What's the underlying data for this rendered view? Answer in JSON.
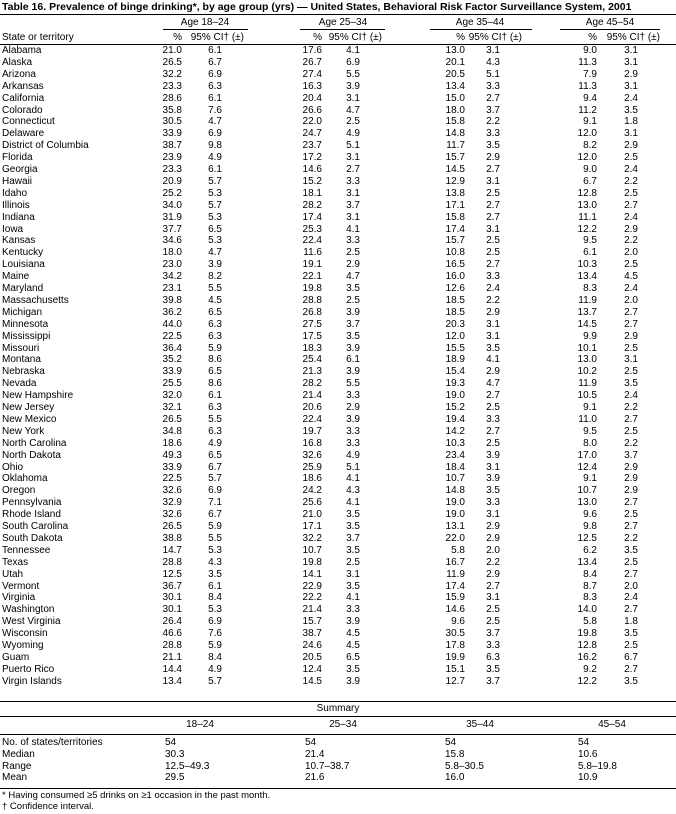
{
  "title": "Table 16. Prevalence of binge drinking*, by age group (yrs) — United States, Behavioral Risk Factor Surveillance System, 2001",
  "header": {
    "state": "State or territory",
    "groups": [
      "Age 18–24",
      "Age 25–34",
      "Age 35–44",
      "Age 45–54"
    ],
    "pct": "%",
    "ci": "95% CI† (±)"
  },
  "rows": [
    [
      "Alabama",
      "21.0",
      "6.1",
      "17.6",
      "4.1",
      "13.0",
      "3.1",
      "9.0",
      "3.1"
    ],
    [
      "Alaska",
      "26.5",
      "6.7",
      "26.7",
      "6.9",
      "20.1",
      "4.3",
      "11.3",
      "3.1"
    ],
    [
      "Arizona",
      "32.2",
      "6.9",
      "27.4",
      "5.5",
      "20.5",
      "5.1",
      "7.9",
      "2.9"
    ],
    [
      "Arkansas",
      "23.3",
      "6.3",
      "16.3",
      "3.9",
      "13.4",
      "3.3",
      "11.3",
      "3.1"
    ],
    [
      "California",
      "28.6",
      "6.1",
      "20.4",
      "3.1",
      "15.0",
      "2.7",
      "9.4",
      "2.4"
    ],
    [
      "Colorado",
      "35.8",
      "7.6",
      "26.6",
      "4.7",
      "18.0",
      "3.7",
      "11.2",
      "3.5"
    ],
    [
      "Connecticut",
      "30.5",
      "4.7",
      "22.0",
      "2.5",
      "15.8",
      "2.2",
      "9.1",
      "1.8"
    ],
    [
      "Delaware",
      "33.9",
      "6.9",
      "24.7",
      "4.9",
      "14.8",
      "3.3",
      "12.0",
      "3.1"
    ],
    [
      "District of Columbia",
      "38.7",
      "9.8",
      "23.7",
      "5.1",
      "11.7",
      "3.5",
      "8.2",
      "2.9"
    ],
    [
      "Florida",
      "23.9",
      "4.9",
      "17.2",
      "3.1",
      "15.7",
      "2.9",
      "12.0",
      "2.5"
    ],
    [
      "Georgia",
      "23.3",
      "6.1",
      "14.6",
      "2.7",
      "14.5",
      "2.7",
      "9.0",
      "2.4"
    ],
    [
      "Hawaii",
      "20.9",
      "5.7",
      "15.2",
      "3.3",
      "12.9",
      "3.1",
      "6.7",
      "2.2"
    ],
    [
      "Idaho",
      "25.2",
      "5.3",
      "18.1",
      "3.1",
      "13.8",
      "2.5",
      "12.8",
      "2.5"
    ],
    [
      "Illinois",
      "34.0",
      "5.7",
      "28.2",
      "3.7",
      "17.1",
      "2.7",
      "13.0",
      "2.7"
    ],
    [
      "Indiana",
      "31.9",
      "5.3",
      "17.4",
      "3.1",
      "15.8",
      "2.7",
      "11.1",
      "2.4"
    ],
    [
      "Iowa",
      "37.7",
      "6.5",
      "25.3",
      "4.1",
      "17.4",
      "3.1",
      "12.2",
      "2.9"
    ],
    [
      "Kansas",
      "34.6",
      "5.3",
      "22.4",
      "3.3",
      "15.7",
      "2.5",
      "9.5",
      "2.2"
    ],
    [
      "Kentucky",
      "18.0",
      "4.7",
      "11.6",
      "2.5",
      "10.8",
      "2.5",
      "6.1",
      "2.0"
    ],
    [
      "Louisiana",
      "23.0",
      "3.9",
      "19.1",
      "2.9",
      "16.5",
      "2.7",
      "10.3",
      "2.5"
    ],
    [
      "Maine",
      "34.2",
      "8.2",
      "22.1",
      "4.7",
      "16.0",
      "3.3",
      "13.4",
      "4.5"
    ],
    [
      "Maryland",
      "23.1",
      "5.5",
      "19.8",
      "3.5",
      "12.6",
      "2.4",
      "8.3",
      "2.4"
    ],
    [
      "Massachusetts",
      "39.8",
      "4.5",
      "28.8",
      "2.5",
      "18.5",
      "2.2",
      "11.9",
      "2.0"
    ],
    [
      "Michigan",
      "36.2",
      "6.5",
      "26.8",
      "3.9",
      "18.5",
      "2.9",
      "13.7",
      "2.7"
    ],
    [
      "Minnesota",
      "44.0",
      "6.3",
      "27.5",
      "3.7",
      "20.3",
      "3.1",
      "14.5",
      "2.7"
    ],
    [
      "Mississippi",
      "22.5",
      "6.3",
      "17.5",
      "3.5",
      "12.0",
      "3.1",
      "9.9",
      "2.9"
    ],
    [
      "Missouri",
      "36.4",
      "5.9",
      "18.3",
      "3.9",
      "15.5",
      "3.5",
      "10.1",
      "2.5"
    ],
    [
      "Montana",
      "35.2",
      "8.6",
      "25.4",
      "6.1",
      "18.9",
      "4.1",
      "13.0",
      "3.1"
    ],
    [
      "Nebraska",
      "33.9",
      "6.5",
      "21.3",
      "3.9",
      "15.4",
      "2.9",
      "10.2",
      "2.5"
    ],
    [
      "Nevada",
      "25.5",
      "8.6",
      "28.2",
      "5.5",
      "19.3",
      "4.7",
      "11.9",
      "3.5"
    ],
    [
      "New Hampshire",
      "32.0",
      "6.1",
      "21.4",
      "3.3",
      "19.0",
      "2.7",
      "10.5",
      "2.4"
    ],
    [
      "New Jersey",
      "32.1",
      "6.3",
      "20.6",
      "2.9",
      "15.2",
      "2.5",
      "9.1",
      "2.2"
    ],
    [
      "New Mexico",
      "26.5",
      "5.5",
      "22.4",
      "3.9",
      "19.4",
      "3.3",
      "11.0",
      "2.7"
    ],
    [
      "New York",
      "34.8",
      "6.3",
      "19.7",
      "3.3",
      "14.2",
      "2.7",
      "9.5",
      "2.5"
    ],
    [
      "North Carolina",
      "18.6",
      "4.9",
      "16.8",
      "3.3",
      "10.3",
      "2.5",
      "8.0",
      "2.2"
    ],
    [
      "North Dakota",
      "49.3",
      "6.5",
      "32.6",
      "4.9",
      "23.4",
      "3.9",
      "17.0",
      "3.7"
    ],
    [
      "Ohio",
      "33.9",
      "6.7",
      "25.9",
      "5.1",
      "18.4",
      "3.1",
      "12.4",
      "2.9"
    ],
    [
      "Oklahoma",
      "22.5",
      "5.7",
      "18.6",
      "4.1",
      "10.7",
      "3.9",
      "9.1",
      "2.9"
    ],
    [
      "Oregon",
      "32.6",
      "6.9",
      "24.2",
      "4.3",
      "14.8",
      "3.5",
      "10.7",
      "2.9"
    ],
    [
      "Pennsylvania",
      "32.9",
      "7.1",
      "25.6",
      "4.1",
      "19.0",
      "3.3",
      "13.0",
      "2.7"
    ],
    [
      "Rhode Island",
      "32.6",
      "6.7",
      "21.0",
      "3.5",
      "19.0",
      "3.1",
      "9.6",
      "2.5"
    ],
    [
      "South Carolina",
      "26.5",
      "5.9",
      "17.1",
      "3.5",
      "13.1",
      "2.9",
      "9.8",
      "2.7"
    ],
    [
      "South Dakota",
      "38.8",
      "5.5",
      "32.2",
      "3.7",
      "22.0",
      "2.9",
      "12.5",
      "2.2"
    ],
    [
      "Tennessee",
      "14.7",
      "5.3",
      "10.7",
      "3.5",
      "5.8",
      "2.0",
      "6.2",
      "3.5"
    ],
    [
      "Texas",
      "28.8",
      "4.3",
      "19.8",
      "2.5",
      "16.7",
      "2.2",
      "13.4",
      "2.5"
    ],
    [
      "Utah",
      "12.5",
      "3.5",
      "14.1",
      "3.1",
      "11.9",
      "2.9",
      "8.4",
      "2.7"
    ],
    [
      "Vermont",
      "36.7",
      "6.1",
      "22.9",
      "3.5",
      "17.4",
      "2.7",
      "8.7",
      "2.0"
    ],
    [
      "Virginia",
      "30.1",
      "8.4",
      "22.2",
      "4.1",
      "15.9",
      "3.1",
      "8.3",
      "2.4"
    ],
    [
      "Washington",
      "30.1",
      "5.3",
      "21.4",
      "3.3",
      "14.6",
      "2.5",
      "14.0",
      "2.7"
    ],
    [
      "West Virginia",
      "26.4",
      "6.9",
      "15.7",
      "3.9",
      "9.6",
      "2.5",
      "5.8",
      "1.8"
    ],
    [
      "Wisconsin",
      "46.6",
      "7.6",
      "38.7",
      "4.5",
      "30.5",
      "3.7",
      "19.8",
      "3.5"
    ],
    [
      "Wyoming",
      "28.8",
      "5.9",
      "24.6",
      "4.5",
      "17.8",
      "3.3",
      "12.8",
      "2.5"
    ],
    [
      "Guam",
      "21.1",
      "8.4",
      "20.5",
      "6.5",
      "19.9",
      "6.3",
      "16.2",
      "6.7"
    ],
    [
      "Puerto Rico",
      "14.4",
      "4.9",
      "12.4",
      "3.5",
      "15.1",
      "3.5",
      "9.2",
      "2.7"
    ],
    [
      "Virgin Islands",
      "13.4",
      "5.7",
      "14.5",
      "3.9",
      "12.7",
      "3.7",
      "12.2",
      "3.5"
    ]
  ],
  "summary": {
    "title": "Summary",
    "headers": [
      "18–24",
      "25–34",
      "35–44",
      "45–54"
    ],
    "rows": [
      [
        "No. of states/territories",
        "54",
        "54",
        "54",
        "54"
      ],
      [
        "Median",
        "30.3",
        "21.4",
        "15.8",
        "10.6"
      ],
      [
        "Range",
        "12.5–49.3",
        "10.7–38.7",
        "5.8–30.5",
        "5.8–19.8"
      ],
      [
        "Mean",
        "29.5",
        "21.6",
        "16.0",
        "10.9"
      ]
    ]
  },
  "footnotes": [
    "* Having consumed ≥5 drinks on ≥1 occasion in the past month.",
    "† Confidence interval."
  ]
}
